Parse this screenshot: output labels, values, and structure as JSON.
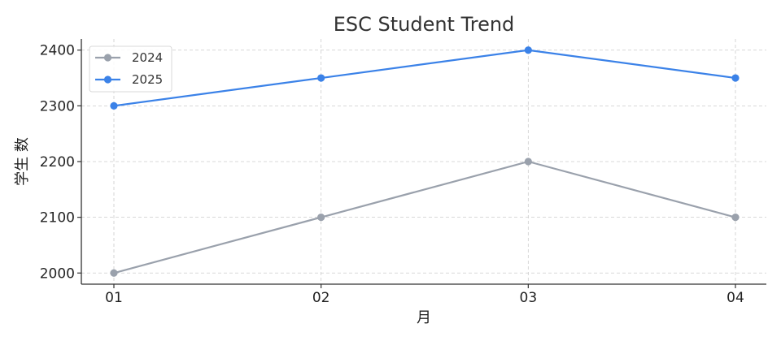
{
  "chart_data": {
    "type": "line",
    "title": "ESC Student Trend",
    "xlabel": "月",
    "ylabel": "学生 数",
    "categories": [
      "01",
      "02",
      "03",
      "04"
    ],
    "ylim": [
      1980,
      2420
    ],
    "yticks": [
      2000,
      2100,
      2200,
      2300,
      2400
    ],
    "grid": true,
    "legend_position": "top-left",
    "series": [
      {
        "name": "2024",
        "values": [
          2000,
          2100,
          2200,
          2100
        ],
        "color": "#9aa1ac"
      },
      {
        "name": "2025",
        "values": [
          2300,
          2350,
          2400,
          2350
        ],
        "color": "#3b82e8"
      }
    ]
  }
}
